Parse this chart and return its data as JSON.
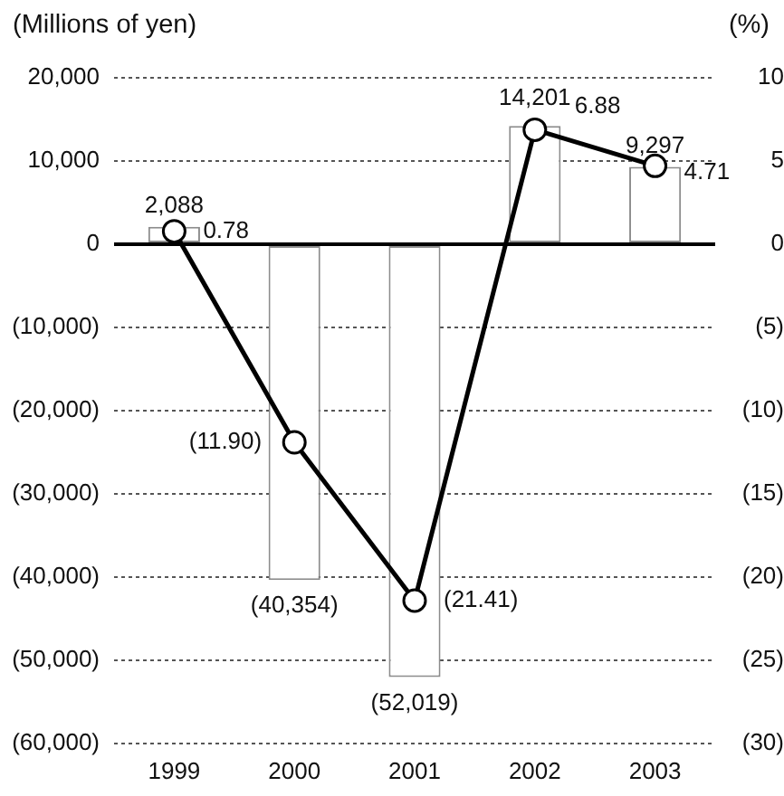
{
  "chart_data": {
    "type": "bar",
    "ylabel": "(Millions of yen)",
    "y2label": "(%)",
    "categories": [
      "1999",
      "2000",
      "2001",
      "2002",
      "2003"
    ],
    "series": [
      {
        "color": "#ffffff",
        "values": [
          2088,
          -40354,
          -52019,
          14201,
          9297
        ],
        "value_labels": [
          "2,088",
          "(40,354)",
          "(52,019)",
          "14,201",
          "9,297"
        ]
      },
      {
        "type": "line",
        "axis": "y2",
        "color": "#000000",
        "values": [
          0.78,
          -11.9,
          -21.41,
          6.88,
          4.71
        ],
        "value_labels": [
          "0.78",
          "(11.90)",
          "(21.41)",
          "6.88",
          "4.71"
        ]
      }
    ],
    "ylim": [
      -60000,
      20000
    ],
    "yticks": [
      {
        "value": 20000,
        "label": "20,000"
      },
      {
        "value": 10000,
        "label": "10,000"
      },
      0,
      {
        "value": -10000,
        "label": "(10,000)"
      },
      {
        "value": -20000,
        "label": "(20,000)"
      },
      {
        "value": -30000,
        "label": "(30,000)"
      },
      {
        "value": -40000,
        "label": "(40,000)"
      },
      {
        "value": -50000,
        "label": "(50,000)"
      },
      {
        "value": -60000,
        "label": "(60,000)"
      }
    ],
    "y2lim": [
      -30,
      10
    ],
    "y2ticks": [
      10,
      5,
      0,
      {
        "value": -5,
        "label": "(5)"
      },
      {
        "value": -10,
        "label": "(10)"
      },
      {
        "value": -15,
        "label": "(15)"
      },
      {
        "value": -20,
        "label": "(20)"
      },
      {
        "value": -25,
        "label": "(25)"
      },
      {
        "value": -30,
        "label": "(30)"
      }
    ],
    "grid": "y",
    "marker": "circle"
  }
}
